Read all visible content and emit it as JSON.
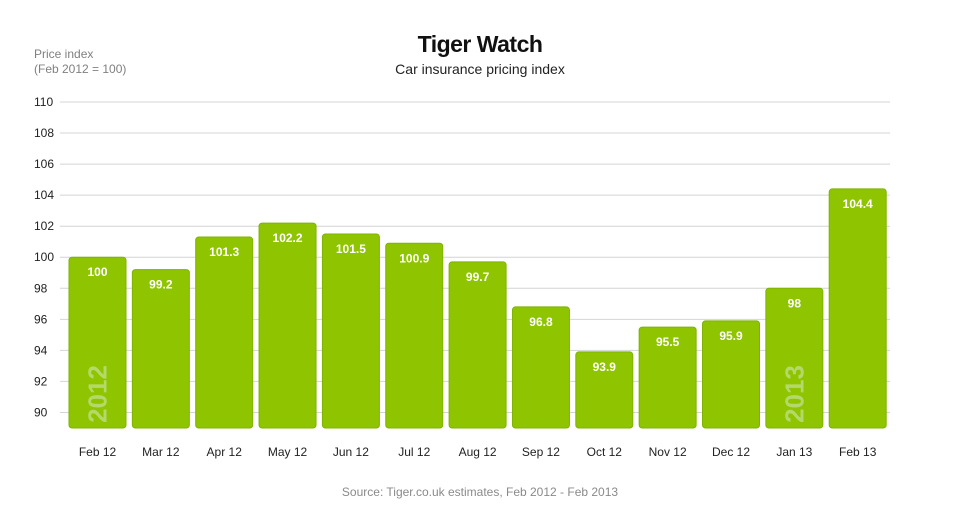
{
  "chart_data": {
    "type": "bar",
    "title": "Tiger Watch",
    "subtitle": "Car insurance pricing index",
    "ylabel_lines": [
      "Price index",
      "(Feb 2012 = 100)"
    ],
    "categories": [
      "Feb 12",
      "Mar 12",
      "Apr 12",
      "May 12",
      "Jun 12",
      "Jul 12",
      "Aug 12",
      "Sep 12",
      "Oct 12",
      "Nov 12",
      "Dec 12",
      "Jan 13",
      "Feb 13"
    ],
    "values": [
      100,
      99.2,
      101.3,
      102.2,
      101.5,
      100.9,
      99.7,
      96.8,
      93.9,
      95.5,
      95.9,
      98,
      104.4
    ],
    "data_labels": [
      "100",
      "99.2",
      "101.3",
      "102.2",
      "101.5",
      "100.9",
      "99.7",
      "96.8",
      "93.9",
      "95.5",
      "95.9",
      "98",
      "104.4"
    ],
    "yticks": [
      110,
      108,
      106,
      104,
      102,
      100,
      98,
      96,
      94,
      92,
      90
    ],
    "ylim": [
      89,
      110
    ],
    "grid": true,
    "year_marks": [
      {
        "text": "2012",
        "category": "Feb 12"
      },
      {
        "text": "2013",
        "category": "Jan 13"
      }
    ],
    "source": "Source: Tiger.co.uk estimates, Feb 2012 - Feb 2013",
    "colors": {
      "bar": "#8fc400",
      "bar_edge": "#7fb300",
      "grid": "#d4d4d4",
      "data_label": "#ffffff",
      "year_mark": "#b4d96a"
    }
  }
}
